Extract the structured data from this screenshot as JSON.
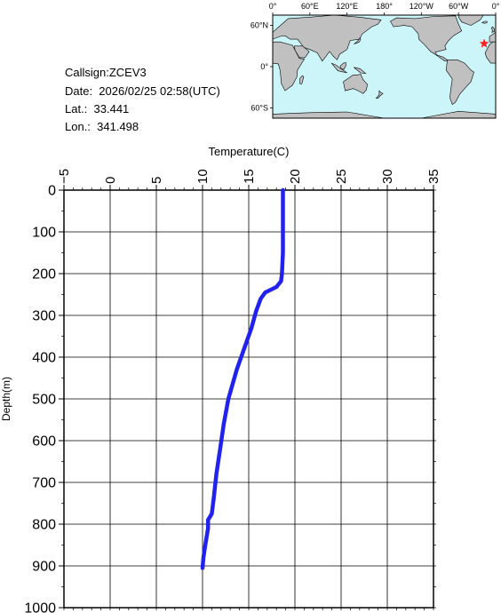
{
  "info": {
    "callsign": "Callsign:ZCEV3",
    "date": "Date:  2026/02/25 02:58(UTC)",
    "lat": "Lat.:  33.441",
    "lon": "Lon.:  341.498"
  },
  "map": {
    "lon_labels": [
      "0°",
      "60°E",
      "120°E",
      "180°",
      "120°W",
      "60°W",
      "0°"
    ],
    "lat_labels": [
      "60°N",
      "0°",
      "60°S"
    ],
    "ocean_color": "#ccf5fa",
    "land_color": "#c0c0c0",
    "marker": {
      "lon": 341.498,
      "lat": 33.441,
      "symbol": "star",
      "color": "#ff2020"
    }
  },
  "chart_data": {
    "type": "line",
    "title": "",
    "xlabel": "Temperature(C)",
    "ylabel": "Depth(m)",
    "xlim": [
      -5,
      35
    ],
    "ylim": [
      0,
      1000
    ],
    "y_inverted": true,
    "x_axis_position": "top",
    "x_ticks": [
      -5,
      0,
      5,
      10,
      15,
      20,
      25,
      30,
      35
    ],
    "y_ticks": [
      0,
      100,
      200,
      300,
      400,
      500,
      600,
      700,
      800,
      900,
      1000
    ],
    "grid": true,
    "series": [
      {
        "color": "#2222ee",
        "points": [
          [
            18.7,
            0
          ],
          [
            18.7,
            50
          ],
          [
            18.7,
            100
          ],
          [
            18.7,
            150
          ],
          [
            18.6,
            200
          ],
          [
            18.5,
            218
          ],
          [
            18.0,
            232
          ],
          [
            16.8,
            245
          ],
          [
            16.3,
            260
          ],
          [
            15.8,
            290
          ],
          [
            15.3,
            330
          ],
          [
            14.5,
            380
          ],
          [
            13.7,
            430
          ],
          [
            12.8,
            500
          ],
          [
            12.3,
            560
          ],
          [
            11.9,
            620
          ],
          [
            11.5,
            680
          ],
          [
            11.2,
            740
          ],
          [
            11.0,
            775
          ],
          [
            10.6,
            790
          ],
          [
            10.6,
            810
          ],
          [
            10.3,
            850
          ],
          [
            10.1,
            880
          ],
          [
            10.0,
            905
          ]
        ]
      }
    ]
  }
}
